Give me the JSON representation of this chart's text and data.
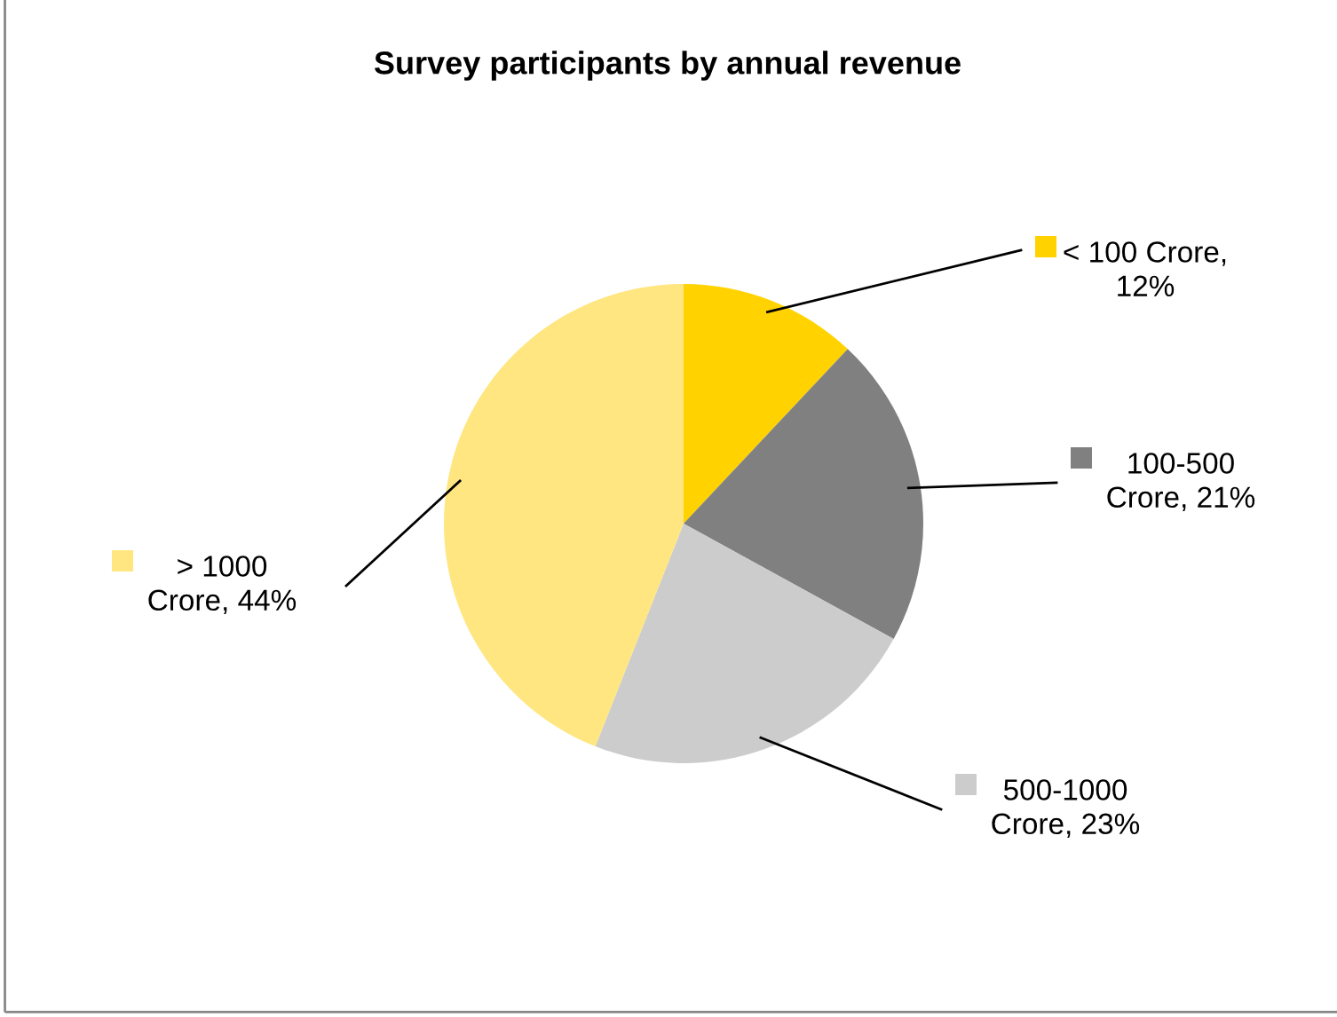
{
  "chart_data": {
    "type": "pie",
    "title": "Survey participants by annual revenue",
    "categories": [
      "< 100 Crore, 12%",
      "100-500 Crore, 21%",
      "500-1000 Crore, 23%",
      "> 1000 Crore, 44%"
    ],
    "values": [
      12,
      21,
      23,
      44
    ],
    "colors": [
      "#ffd200",
      "#808080",
      "#cccccc",
      "#ffe680"
    ],
    "legend": "right"
  }
}
